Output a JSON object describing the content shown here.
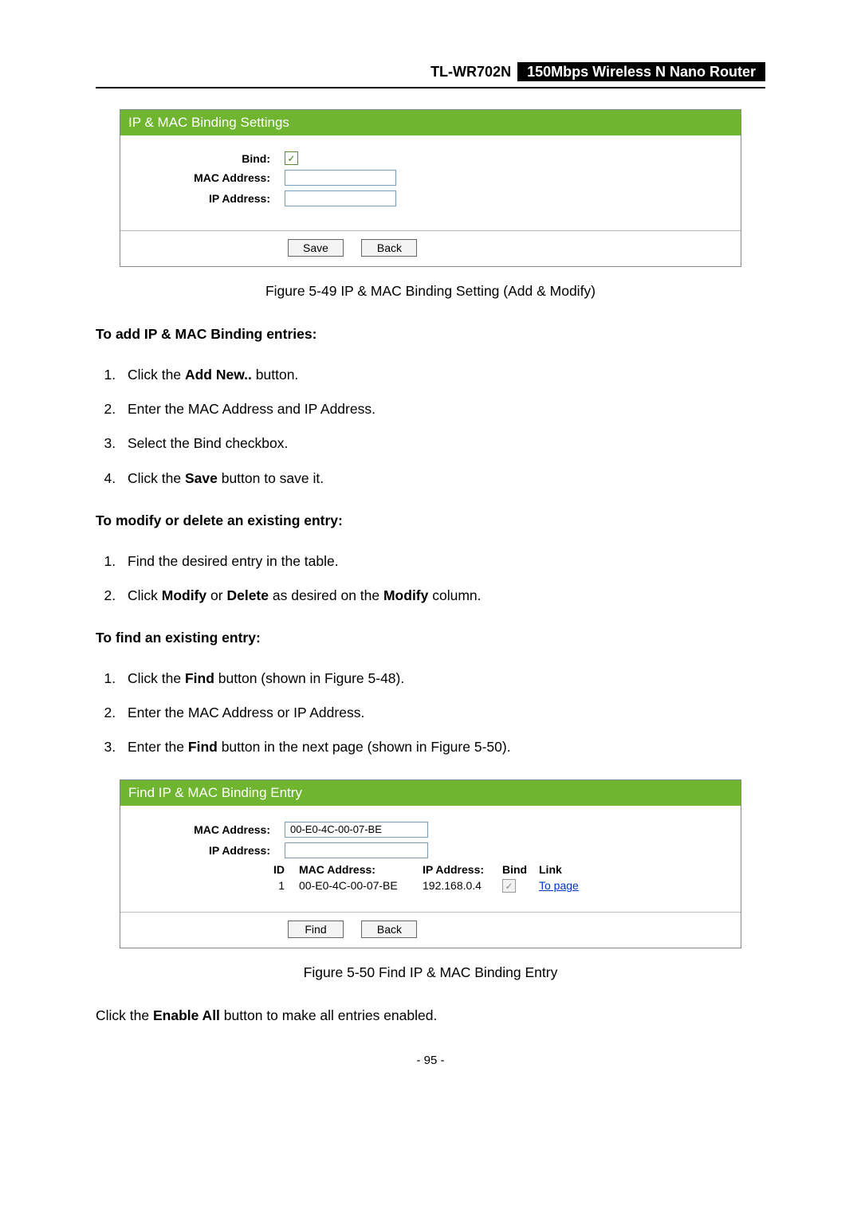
{
  "header": {
    "model": "TL-WR702N",
    "desc": "150Mbps Wireless N Nano Router"
  },
  "colors": {
    "panel_title_bg": "#6fb52f",
    "link_color": "#0033cc"
  },
  "panel1": {
    "title": "IP & MAC Binding Settings",
    "bind_label": "Bind:",
    "mac_label": "MAC Address:",
    "ip_label": "IP Address:",
    "save_btn": "Save",
    "back_btn": "Back"
  },
  "caption1": "Figure 5-49 IP & MAC Binding Setting (Add & Modify)",
  "sec_add_heading": "To add IP & MAC Binding entries:",
  "sec_add_steps": [
    {
      "pre": "Click the ",
      "b": "Add New..",
      "post": " button."
    },
    {
      "pre": "Enter the MAC Address and IP Address.",
      "b": "",
      "post": ""
    },
    {
      "pre": "Select the Bind checkbox.",
      "b": "",
      "post": ""
    },
    {
      "pre": "Click the ",
      "b": "Save",
      "post": " button to save it."
    }
  ],
  "sec_mod_heading": "To modify or delete an existing entry",
  "sec_mod_steps": [
    "Find the desired entry in the table.",
    "Click <b>Modify</b> or <b>Delete</b> as desired on the <b>Modify</b> column."
  ],
  "sec_find_heading": "To find an existing entry",
  "sec_find_steps": [
    "Click the <b>Find</b> button (shown in Figure 5-48).",
    "Enter the MAC Address or IP Address.",
    "Enter the <b>Find</b> button in the next page (shown in Figure 5-50)."
  ],
  "panel2": {
    "title": "Find IP & MAC Binding Entry",
    "mac_label": "MAC Address:",
    "ip_label": "IP Address:",
    "mac_value": "00-E0-4C-00-07-BE",
    "head_id": "ID",
    "head_mac": "MAC Address:",
    "head_ip": "IP Address:",
    "head_bind": "Bind",
    "head_link": "Link",
    "row_id": "1",
    "row_mac": "00-E0-4C-00-07-BE",
    "row_ip": "192.168.0.4",
    "row_link": "To page",
    "find_btn": "Find",
    "back_btn": "Back"
  },
  "caption2": "Figure 5-50 Find IP & MAC Binding Entry",
  "final_line_pre": "Click the ",
  "final_line_b": "Enable All",
  "final_line_post": " button to make all entries enabled.",
  "pagenum": "- 95 -"
}
